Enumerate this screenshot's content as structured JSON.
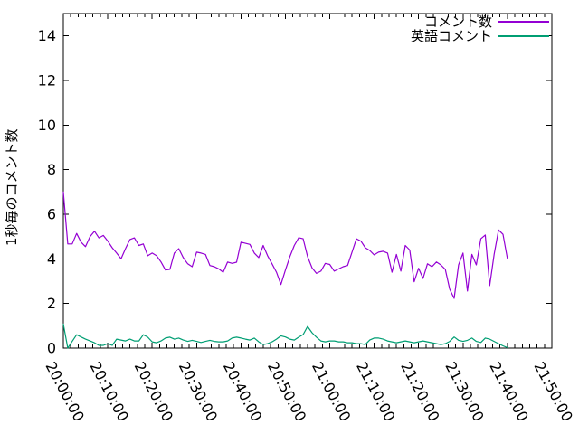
{
  "chart_data": {
    "type": "line",
    "title": "",
    "ylabel": "1秒毎のコメント数",
    "xlabel": "",
    "ylim": [
      0,
      15
    ],
    "ytick_values": [
      0,
      2,
      4,
      6,
      8,
      10,
      12,
      14
    ],
    "xtick_labels": [
      "20:00:00",
      "20:10:00",
      "20:20:00",
      "20:30:00",
      "20:40:00",
      "20:50:00",
      "21:00:00",
      "21:10:00",
      "21:20:00",
      "21:30:00",
      "21:40:00",
      "21:50:00"
    ],
    "x_axis": {
      "start": "20:00:00",
      "end": "21:50:00",
      "total_minutes": 110,
      "major_step_min": 10,
      "minor_divisions_per_major": 6,
      "sample_step_min": 1
    },
    "grid": "off",
    "legend_position": "top-right-inside",
    "axis_color": "#000000",
    "text_color": "#000000",
    "background_color": "#ffffff",
    "legend": [
      {
        "label": "コメント数",
        "color": "#9400d3"
      },
      {
        "label": "英語コメント",
        "color": "#009e73"
      }
    ],
    "series": [
      {
        "name": "コメント数",
        "color": "#9400d3",
        "values": [
          7.0,
          4.67,
          4.67,
          5.14,
          4.75,
          4.55,
          5.0,
          5.24,
          4.94,
          5.05,
          4.8,
          4.5,
          4.26,
          4.0,
          4.46,
          4.87,
          4.94,
          4.6,
          4.67,
          4.14,
          4.26,
          4.14,
          3.86,
          3.5,
          3.53,
          4.26,
          4.46,
          4.06,
          3.78,
          3.65,
          4.3,
          4.26,
          4.2,
          3.7,
          3.65,
          3.55,
          3.4,
          3.86,
          3.8,
          3.85,
          4.75,
          4.7,
          4.65,
          4.26,
          4.06,
          4.6,
          4.14,
          3.78,
          3.4,
          2.85,
          3.5,
          4.1,
          4.6,
          4.95,
          4.9,
          4.1,
          3.6,
          3.35,
          3.45,
          3.8,
          3.75,
          3.45,
          3.55,
          3.65,
          3.7,
          4.3,
          4.9,
          4.8,
          4.5,
          4.38,
          4.18,
          4.3,
          4.34,
          4.26,
          3.4,
          4.2,
          3.45,
          4.6,
          4.4,
          2.97,
          3.58,
          3.12,
          3.78,
          3.65,
          3.86,
          3.73,
          3.53,
          2.64,
          2.23,
          3.73,
          4.26,
          2.56,
          4.2,
          3.73,
          4.9,
          5.07,
          2.8,
          4.2,
          5.3,
          5.1,
          4.0
        ]
      },
      {
        "name": "英語コメント",
        "color": "#009e73",
        "values": [
          1.08,
          0.0,
          0.3,
          0.6,
          0.5,
          0.4,
          0.32,
          0.24,
          0.12,
          0.12,
          0.2,
          0.12,
          0.4,
          0.36,
          0.32,
          0.4,
          0.32,
          0.32,
          0.6,
          0.49,
          0.28,
          0.24,
          0.32,
          0.45,
          0.49,
          0.4,
          0.45,
          0.36,
          0.3,
          0.35,
          0.3,
          0.25,
          0.3,
          0.35,
          0.3,
          0.28,
          0.28,
          0.32,
          0.45,
          0.49,
          0.45,
          0.4,
          0.36,
          0.45,
          0.28,
          0.16,
          0.2,
          0.28,
          0.4,
          0.55,
          0.5,
          0.4,
          0.36,
          0.49,
          0.61,
          0.97,
          0.69,
          0.49,
          0.32,
          0.28,
          0.32,
          0.32,
          0.28,
          0.28,
          0.24,
          0.24,
          0.2,
          0.2,
          0.16,
          0.36,
          0.45,
          0.45,
          0.4,
          0.32,
          0.28,
          0.24,
          0.28,
          0.32,
          0.28,
          0.24,
          0.28,
          0.32,
          0.28,
          0.24,
          0.2,
          0.16,
          0.2,
          0.3,
          0.5,
          0.35,
          0.3,
          0.35,
          0.45,
          0.3,
          0.25,
          0.45,
          0.4,
          0.3,
          0.2,
          0.1,
          0.02
        ]
      }
    ]
  }
}
